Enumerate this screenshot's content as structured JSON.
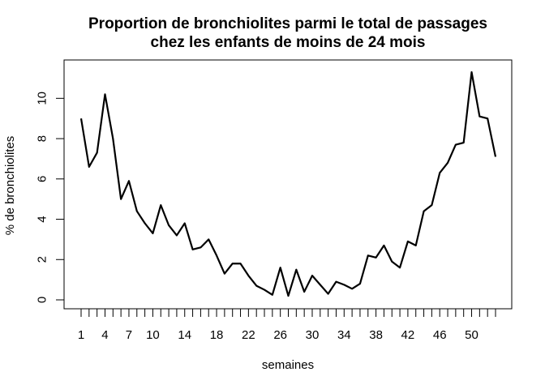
{
  "chart_data": {
    "type": "line",
    "title": [
      "Proportion de bronchiolites parmi le total de passages",
      "chez les enfants de moins de 24 mois"
    ],
    "xlabel": "semaines",
    "ylabel": "% de bronchiolites",
    "xlim": [
      1,
      53
    ],
    "ylim": [
      0,
      11.3
    ],
    "x_major_ticks": [
      1,
      4,
      7,
      10,
      14,
      18,
      22,
      26,
      30,
      34,
      38,
      42,
      46,
      50
    ],
    "x_minor_ticks": [
      1,
      2,
      3,
      4,
      5,
      6,
      7,
      8,
      9,
      10,
      11,
      12,
      13,
      14,
      15,
      16,
      17,
      18,
      19,
      20,
      21,
      22,
      23,
      24,
      25,
      26,
      27,
      28,
      29,
      30,
      31,
      32,
      33,
      34,
      35,
      36,
      37,
      38,
      39,
      40,
      41,
      42,
      43,
      44,
      45,
      46,
      47,
      48,
      49,
      50,
      51,
      52,
      53
    ],
    "y_ticks": [
      0,
      2,
      4,
      6,
      8,
      10
    ],
    "grid": false,
    "series": [
      {
        "x": [
          1,
          2,
          3,
          4,
          5,
          6,
          7,
          8,
          9,
          10,
          11,
          12,
          13,
          14,
          15,
          16,
          17,
          18,
          19,
          20,
          21,
          22,
          23,
          24,
          25,
          26,
          27,
          28,
          29,
          30,
          31,
          32,
          33,
          34,
          35,
          36,
          37,
          38,
          39,
          40,
          41,
          42,
          43,
          44,
          45,
          46,
          47,
          48,
          49,
          50,
          51,
          52,
          53
        ],
        "values": [
          9.0,
          6.6,
          7.3,
          10.2,
          8.0,
          5.0,
          5.9,
          4.4,
          3.8,
          3.3,
          4.7,
          3.7,
          3.2,
          3.8,
          2.5,
          2.6,
          3.0,
          2.2,
          1.3,
          1.8,
          1.8,
          1.2,
          0.7,
          0.5,
          0.25,
          1.6,
          0.2,
          1.5,
          0.4,
          1.2,
          0.75,
          0.3,
          0.9,
          0.75,
          0.55,
          0.8,
          2.2,
          2.1,
          2.7,
          1.9,
          1.6,
          2.9,
          2.7,
          4.4,
          4.7,
          6.3,
          6.8,
          7.7,
          7.8,
          11.3,
          9.1,
          9.0,
          7.1
        ]
      }
    ]
  }
}
